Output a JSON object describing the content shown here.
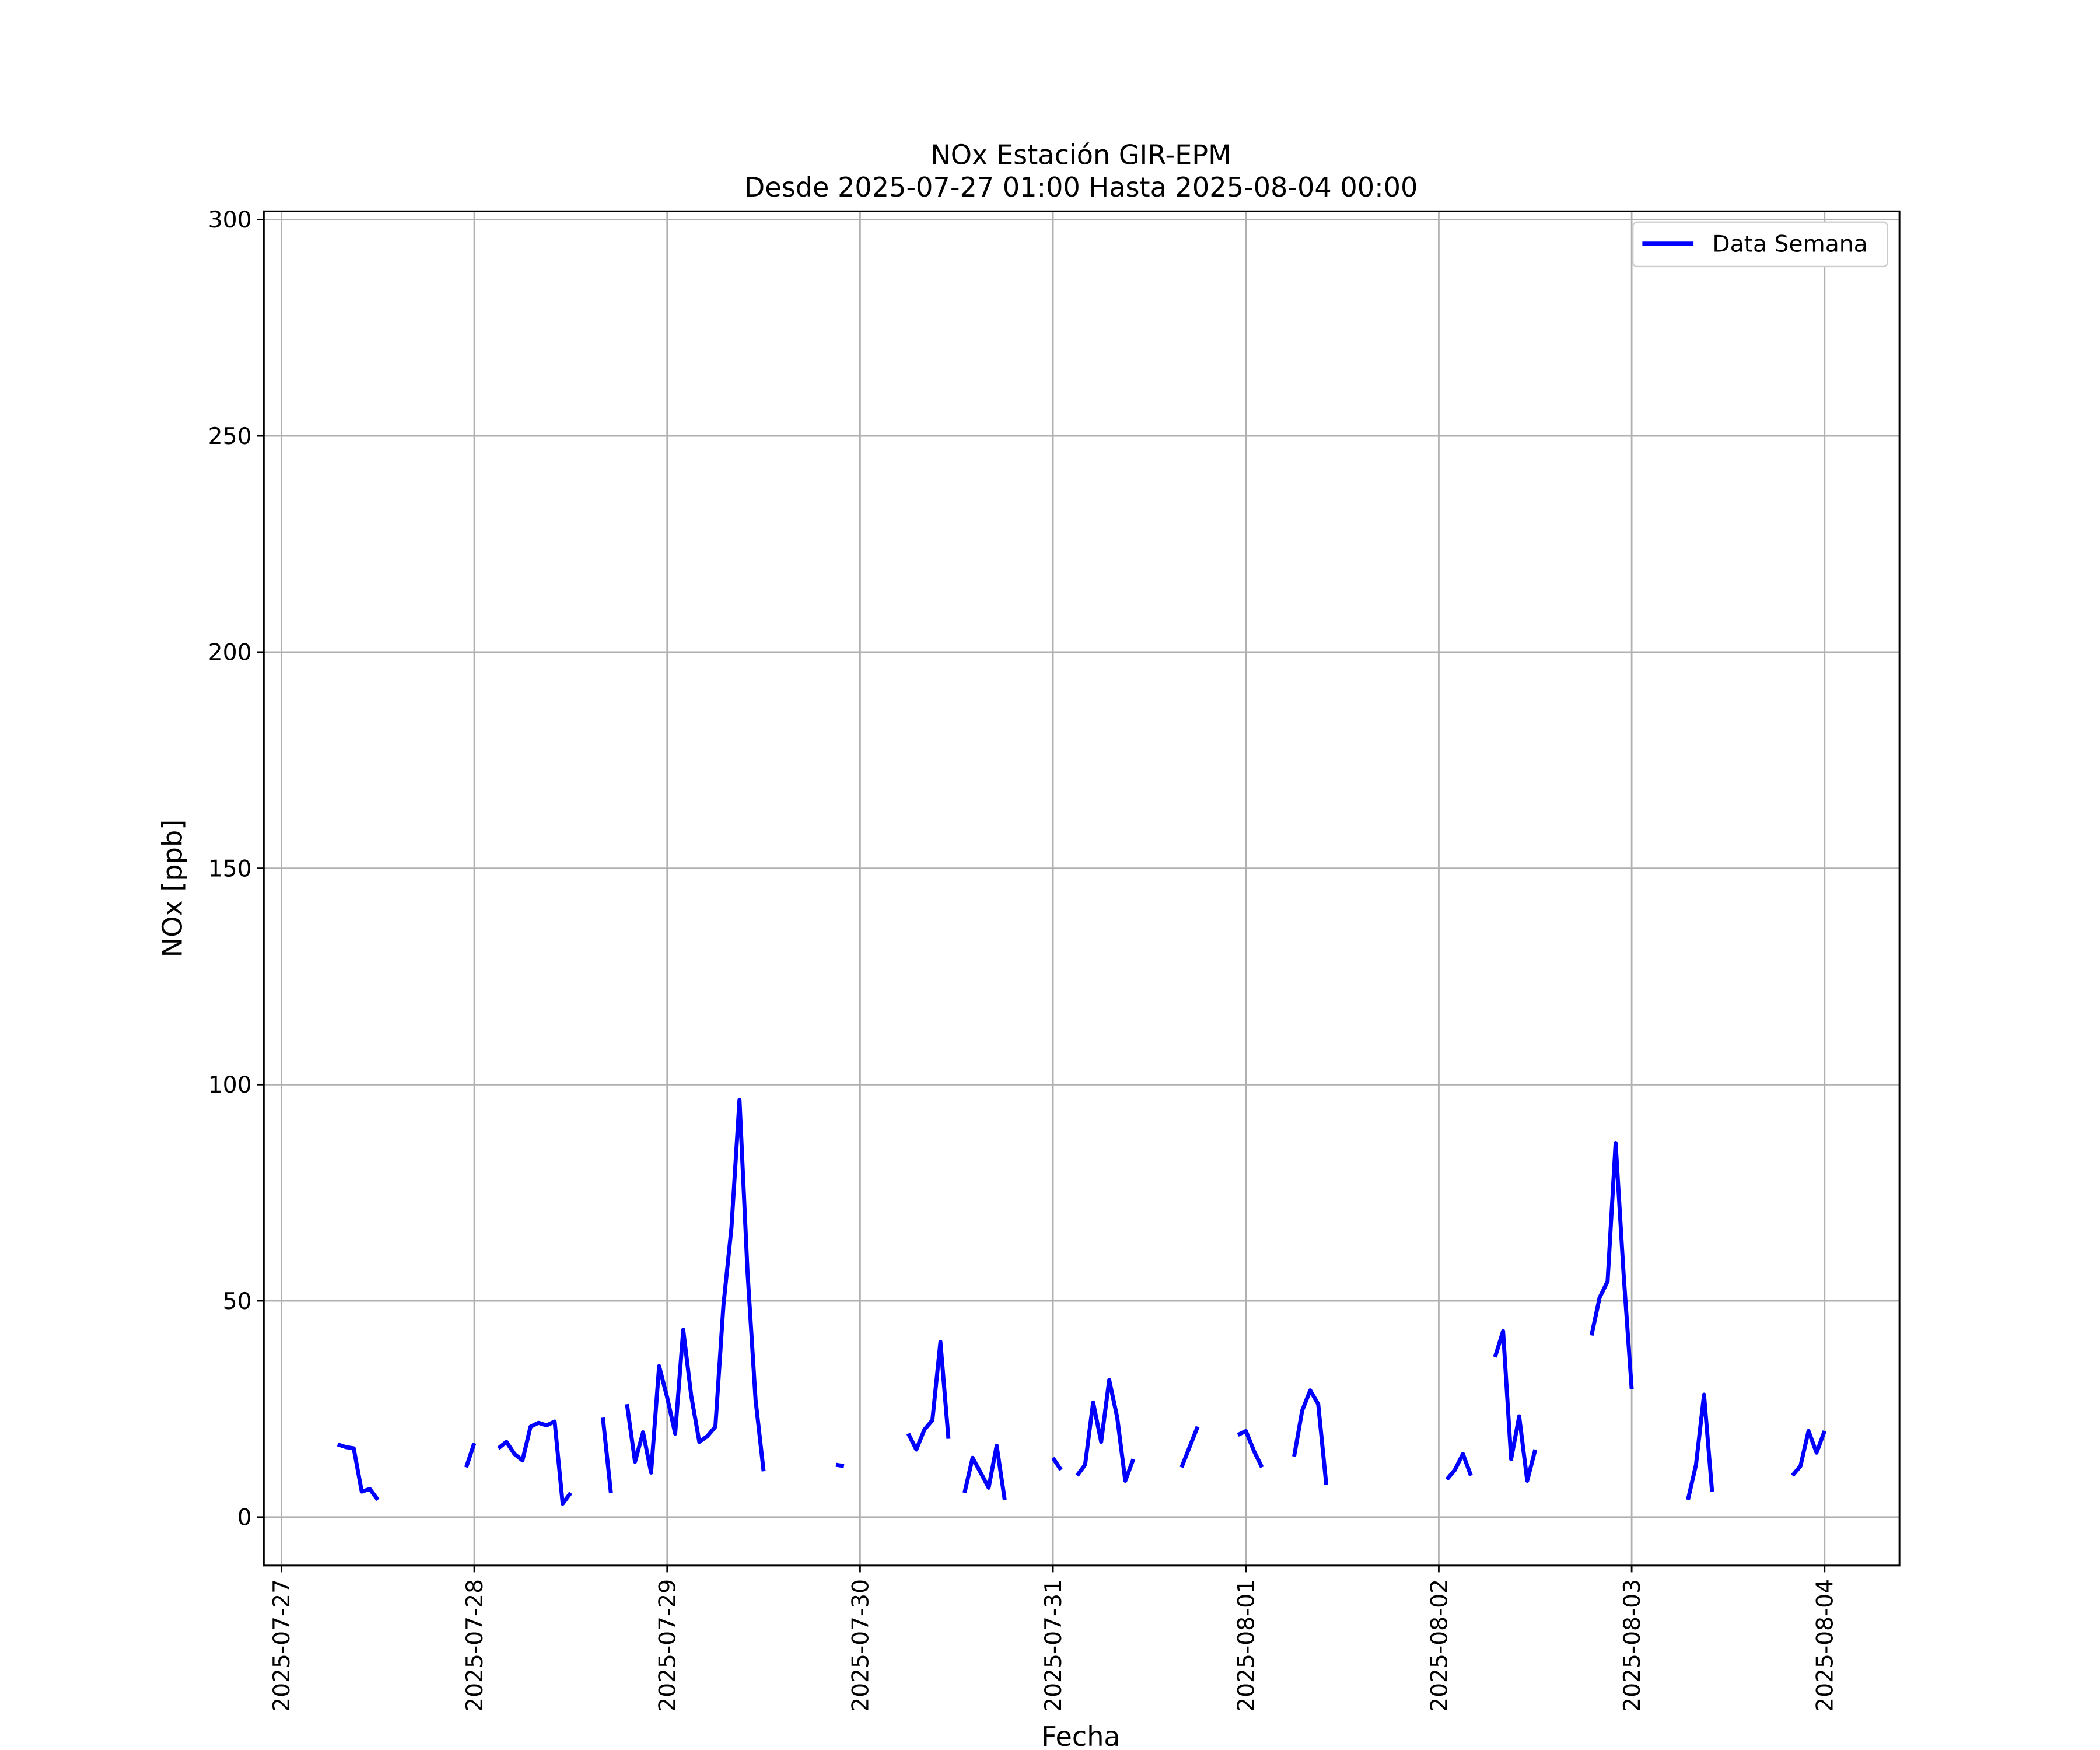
{
  "chart_data": {
    "type": "line",
    "title": "NOx Estación GIR-EPM",
    "subtitle": "Desde 2025-07-27 01:00 Hasta 2025-08-04 00:00",
    "xlabel": "Fecha",
    "ylabel": "NOx [ppb]",
    "x": [
      "2025-07-27 07:00",
      "2025-07-27 08:00",
      "2025-07-27 09:00",
      "2025-07-27 10:00",
      "2025-07-27 11:00",
      "2025-07-27 12:00",
      "2025-07-27 13:00",
      "2025-07-27 23:00",
      "2025-07-28 00:00",
      "2025-07-28 01:00",
      "2025-07-28 03:00",
      "2025-07-28 04:00",
      "2025-07-28 05:00",
      "2025-07-28 06:00",
      "2025-07-28 07:00",
      "2025-07-28 08:00",
      "2025-07-28 09:00",
      "2025-07-28 10:00",
      "2025-07-28 11:00",
      "2025-07-28 12:00",
      "2025-07-28 13:00",
      "2025-07-28 16:00",
      "2025-07-28 17:00",
      "2025-07-28 18:00",
      "2025-07-28 19:00",
      "2025-07-28 20:00",
      "2025-07-28 21:00",
      "2025-07-28 22:00",
      "2025-07-28 23:00",
      "2025-07-29 00:00",
      "2025-07-29 01:00",
      "2025-07-29 02:00",
      "2025-07-29 03:00",
      "2025-07-29 04:00",
      "2025-07-29 05:00",
      "2025-07-29 06:00",
      "2025-07-29 07:00",
      "2025-07-29 08:00",
      "2025-07-29 09:00",
      "2025-07-29 10:00",
      "2025-07-29 11:00",
      "2025-07-29 12:00",
      "2025-07-29 13:00",
      "2025-07-29 21:00",
      "2025-07-29 22:00",
      "2025-07-29 23:00",
      "2025-07-30 06:00",
      "2025-07-30 07:00",
      "2025-07-30 08:00",
      "2025-07-30 09:00",
      "2025-07-30 10:00",
      "2025-07-30 11:00",
      "2025-07-30 12:00",
      "2025-07-30 13:00",
      "2025-07-30 14:00",
      "2025-07-30 15:00",
      "2025-07-30 16:00",
      "2025-07-30 17:00",
      "2025-07-30 18:00",
      "2025-07-30 19:00",
      "2025-07-31 00:00",
      "2025-07-31 01:00",
      "2025-07-31 02:00",
      "2025-07-31 03:00",
      "2025-07-31 04:00",
      "2025-07-31 05:00",
      "2025-07-31 06:00",
      "2025-07-31 07:00",
      "2025-07-31 08:00",
      "2025-07-31 09:00",
      "2025-07-31 10:00",
      "2025-07-31 11:00",
      "2025-07-31 16:00",
      "2025-07-31 17:00",
      "2025-07-31 18:00",
      "2025-07-31 19:00",
      "2025-07-31 23:00",
      "2025-08-01 00:00",
      "2025-08-01 01:00",
      "2025-08-01 02:00",
      "2025-08-01 03:00",
      "2025-08-01 06:00",
      "2025-08-01 07:00",
      "2025-08-01 08:00",
      "2025-08-01 09:00",
      "2025-08-01 10:00",
      "2025-08-01 11:00",
      "2025-08-02 01:00",
      "2025-08-02 02:00",
      "2025-08-02 03:00",
      "2025-08-02 04:00",
      "2025-08-02 05:00",
      "2025-08-02 07:00",
      "2025-08-02 08:00",
      "2025-08-02 09:00",
      "2025-08-02 10:00",
      "2025-08-02 11:00",
      "2025-08-02 12:00",
      "2025-08-02 13:00",
      "2025-08-02 19:00",
      "2025-08-02 20:00",
      "2025-08-02 21:00",
      "2025-08-02 22:00",
      "2025-08-02 23:00",
      "2025-08-03 00:00",
      "2025-08-03 01:00",
      "2025-08-03 07:00",
      "2025-08-03 08:00",
      "2025-08-03 09:00",
      "2025-08-03 10:00",
      "2025-08-03 11:00",
      "2025-08-03 20:00",
      "2025-08-03 21:00",
      "2025-08-03 22:00",
      "2025-08-03 23:00",
      "2025-08-04 00:00"
    ],
    "series": [
      {
        "name": "Data Semana",
        "color": "#0000ff",
        "values": [
          16.8,
          16.2,
          15.9,
          5.9,
          6.5,
          4.0,
          null,
          11.5,
          17.1,
          null,
          15.9,
          17.4,
          14.6,
          13.1,
          20.9,
          21.8,
          21.2,
          22.1,
          3.1,
          5.6,
          null,
          23.0,
          5.6,
          null,
          26.1,
          12.8,
          19.6,
          10.3,
          34.9,
          27.7,
          19.3,
          43.3,
          28.0,
          17.4,
          18.7,
          20.9,
          48.9,
          66.9,
          96.5,
          56.6,
          27.1,
          10.6,
          null,
          12.1,
          11.8,
          null,
          19.3,
          15.6,
          20.2,
          22.4,
          40.5,
          18.1,
          null,
          5.6,
          13.7,
          10.3,
          6.8,
          16.5,
          4.0,
          null,
          13.7,
          10.9,
          null,
          9.6,
          12.1,
          26.5,
          17.4,
          31.7,
          23.0,
          8.4,
          13.4,
          null,
          11.5,
          16.2,
          20.9,
          null,
          19.0,
          19.9,
          15.3,
          11.5,
          null,
          14.0,
          24.6,
          29.3,
          26.1,
          7.5,
          null,
          8.7,
          10.9,
          14.6,
          9.6,
          null,
          37.0,
          43.0,
          13.4,
          23.3,
          8.4,
          15.6,
          null,
          42.0,
          50.7,
          54.5,
          86.5,
          56.0,
          29.6,
          null,
          4.0,
          12.1,
          28.3,
          5.9,
          null,
          9.6,
          11.8,
          19.9,
          14.9,
          19.9
        ]
      }
    ],
    "xlim": [
      "2025-07-26 21:49",
      "2025-08-04 09:19"
    ],
    "xticks": [
      "2025-07-27",
      "2025-07-28",
      "2025-07-29",
      "2025-07-30",
      "2025-07-31",
      "2025-08-01",
      "2025-08-02",
      "2025-08-03",
      "2025-08-04"
    ],
    "ylim": [
      -11.2,
      301.9
    ],
    "yticks": [
      0,
      50,
      100,
      150,
      200,
      250,
      300
    ],
    "grid": true,
    "legend": "upper right"
  }
}
